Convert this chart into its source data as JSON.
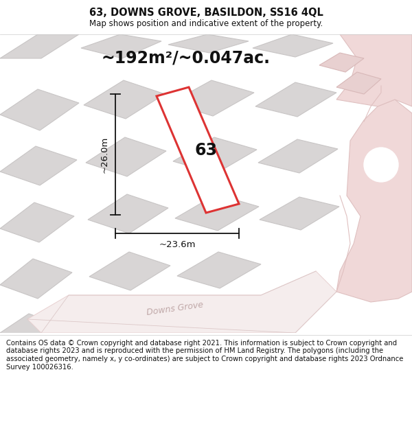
{
  "title": "63, DOWNS GROVE, BASILDON, SS16 4QL",
  "subtitle": "Map shows position and indicative extent of the property.",
  "area_text": "~192m²/~0.047ac.",
  "dim_width": "~23.6m",
  "dim_height": "~26.0m",
  "plot_label": "63",
  "footer": "Contains OS data © Crown copyright and database right 2021. This information is subject to Crown copyright and database rights 2023 and is reproduced with the permission of HM Land Registry. The polygons (including the associated geometry, namely x, y co-ordinates) are subject to Crown copyright and database rights 2023 Ordnance Survey 100026316.",
  "bg_color": "#f2f0f0",
  "plot_outline_color": "#dd3333",
  "plot_fill_color": "#ffffff",
  "building_fill": "#d8d5d5",
  "building_edge": "#c8c5c5",
  "road_pink_fill": "#f0d8d8",
  "road_pink_edge": "#dfc0c0",
  "dim_line_color": "#111111",
  "text_color": "#111111",
  "street_label_color": "#c0a8a8",
  "title_fontsize": 10.5,
  "subtitle_fontsize": 8.5,
  "area_fontsize": 17,
  "plot_label_fontsize": 17,
  "dim_fontsize": 9.5,
  "footer_fontsize": 7.2
}
